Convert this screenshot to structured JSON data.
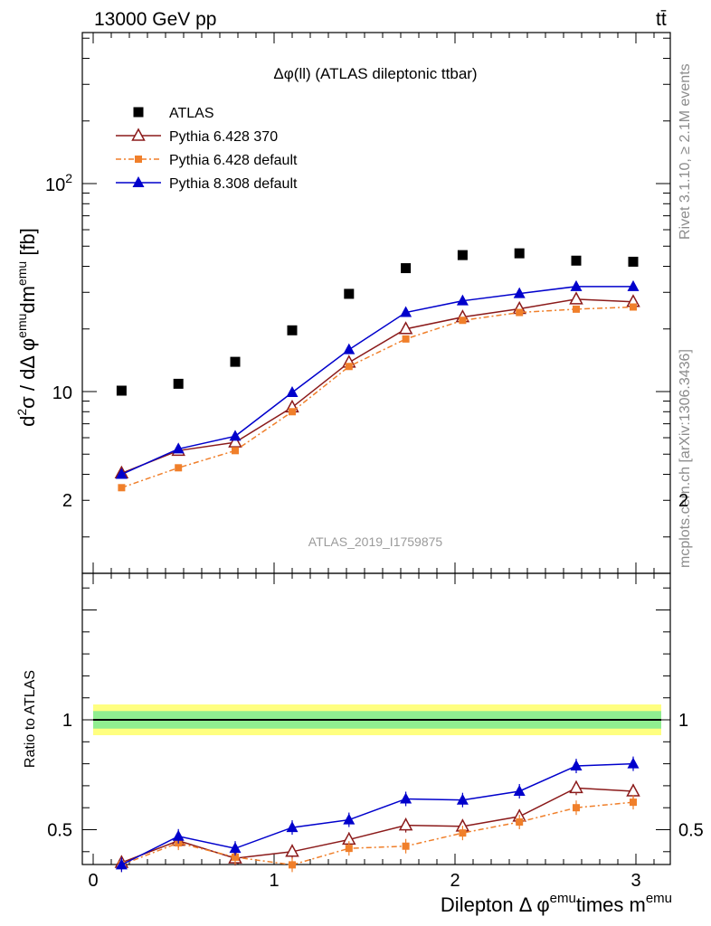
{
  "header": {
    "left": "13000 GeV pp",
    "right": "tt̄"
  },
  "side": {
    "rivet": "Rivet 3.1.10, ≥ 2.1M events",
    "mcplots": "mcplots.cern.ch [arXiv:1306.3436]"
  },
  "chart_data": {
    "type": "scatter",
    "title": "Δφ(ll) (ATLAS dileptonic ttbar)",
    "analysis_id": "ATLAS_2019_I1759875",
    "xlabel_main": "Dilepton Δ φ",
    "xlabel_sup1": "emu",
    "xlabel_mid": "times m",
    "xlabel_sup2": "emu",
    "ylabel_main": "d²σ / dΔ φ^emu dm^emu [fb]",
    "ylabel_ratio": "Ratio to ATLAS",
    "xlim": [
      -0.1,
      3.2
    ],
    "ylim_main": [
      2,
      600
    ],
    "ylog_main": true,
    "ylim_ratio": [
      0.33,
      2.35
    ],
    "x_ticks": [
      "0",
      "1",
      "2",
      "3"
    ],
    "y_ticks_main": [
      "10",
      "10²"
    ],
    "y_ticks_ratio": [
      "0.5",
      "1",
      "2"
    ],
    "legend_position": "top-left",
    "x": [
      0.157,
      0.471,
      0.785,
      1.1,
      1.414,
      1.728,
      2.042,
      2.356,
      2.67,
      2.985
    ],
    "series": [
      {
        "name": "ATLAS",
        "color": "#000000",
        "marker": "square",
        "values": [
          10.1,
          10.9,
          13.9,
          19.7,
          29.5,
          39.2,
          45.3,
          46.2,
          42.6,
          42.1
        ]
      },
      {
        "name": "Pythia 6.428 370",
        "color": "#8b1a1a",
        "marker": "open-triangle",
        "values": [
          4.05,
          5.2,
          5.7,
          8.4,
          13.8,
          20.0,
          22.8,
          25.0,
          27.8,
          27.0
        ],
        "ratio": [
          0.35,
          0.45,
          0.37,
          0.4,
          0.455,
          0.52,
          0.515,
          0.56,
          0.69,
          0.675
        ]
      },
      {
        "name": "Pythia 6.428 default",
        "color": "#f07f2a",
        "marker": "small-square",
        "values": [
          3.45,
          4.3,
          5.2,
          8.0,
          13.2,
          17.9,
          22.0,
          24.0,
          24.9,
          25.5
        ],
        "ratio": [
          0.34,
          0.44,
          0.375,
          0.34,
          0.415,
          0.425,
          0.485,
          0.535,
          0.6,
          0.625
        ]
      },
      {
        "name": "Pythia 8.308 default",
        "color": "#0000cc",
        "marker": "triangle",
        "values": [
          4.0,
          5.3,
          6.1,
          9.9,
          15.9,
          24.0,
          27.3,
          29.6,
          32.0,
          32.0
        ],
        "ratio": [
          0.34,
          0.47,
          0.415,
          0.51,
          0.545,
          0.64,
          0.635,
          0.675,
          0.79,
          0.8
        ]
      }
    ]
  }
}
